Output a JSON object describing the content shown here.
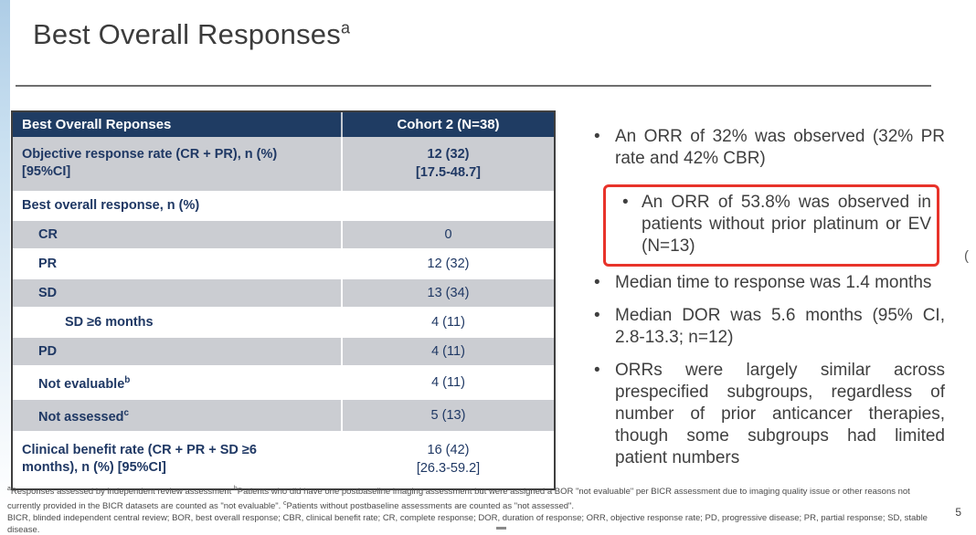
{
  "slide": {
    "title": {
      "text": "Best Overall Responses",
      "sup": "a"
    },
    "page_number": "5"
  },
  "colors": {
    "table_header_bg": "#1f3c63",
    "table_shaded_row": "#cbcdd2",
    "table_text_navy": "#1f3864",
    "highlight_border_red": "#e8332a",
    "accent_strip_blue": "#aecde6"
  },
  "table": {
    "header": [
      {
        "text": "Best Overall Reponses"
      },
      {
        "text": "Cohort 2 (N=38)"
      }
    ],
    "rows": [
      {
        "label_lines": [
          "Objective response rate (CR + PR), n (%)",
          "[95%CI]"
        ],
        "value_lines": [
          "12 (32)",
          "[17.5-48.7]"
        ],
        "shaded": true,
        "indent": 0,
        "value_bold": true
      },
      {
        "label_lines": [
          "Best overall response, n (%)"
        ],
        "value_lines": [],
        "shaded": false,
        "indent": 0
      },
      {
        "label_lines": [
          "CR"
        ],
        "value_lines": [
          "0"
        ],
        "shaded": true,
        "indent": 1
      },
      {
        "label_lines": [
          "PR"
        ],
        "value_lines": [
          "12 (32)"
        ],
        "shaded": false,
        "indent": 1
      },
      {
        "label_lines": [
          "SD"
        ],
        "value_lines": [
          "13 (34)"
        ],
        "shaded": true,
        "indent": 1
      },
      {
        "label_lines": [
          "SD ≥6 months"
        ],
        "value_lines": [
          "4 (11)"
        ],
        "shaded": false,
        "indent": 2
      },
      {
        "label_lines": [
          "PD"
        ],
        "value_lines": [
          "4 (11)"
        ],
        "shaded": true,
        "indent": 1
      },
      {
        "label_lines": [
          "Not evaluable"
        ],
        "label_sup": "b",
        "value_lines": [
          "4 (11)"
        ],
        "shaded": false,
        "indent": 1
      },
      {
        "label_lines": [
          "Not assessed"
        ],
        "label_sup": "c",
        "value_lines": [
          "5 (13)"
        ],
        "shaded": true,
        "indent": 1
      },
      {
        "label_lines": [
          "Clinical benefit rate (CR + PR + SD ≥6",
          "months), n (%) [95%CI]"
        ],
        "value_lines": [
          "16 (42)",
          "[26.3-59.2]"
        ],
        "shaded": false,
        "indent": 0
      }
    ]
  },
  "bullets": [
    {
      "level": 1,
      "text": "An ORR of 32% was observed (32% PR rate and 42% CBR)"
    },
    {
      "level": 2,
      "highlighted": true,
      "text": "An ORR of 53.8% was observed in patients without prior platinum or EV (N=13)"
    },
    {
      "level": 1,
      "text": "Median time to response was 1.4 months"
    },
    {
      "level": 1,
      "text": "Median DOR was 5.6 months (95% CI, 2.8-13.3; n=12)"
    },
    {
      "level": 1,
      "text": "ORRs were largely similar across prespecified subgroups, regardless of number of prior anticancer therapies, though some subgroups had limited patient numbers"
    }
  ],
  "footnotes": {
    "paragraphs": [
      [
        {
          "sup": "a"
        },
        {
          "t": "Responses assessed by independent review assessment "
        },
        {
          "sup": "b"
        },
        {
          "t": "Patients who did have one postbaseline imaging assessment but were assigned a BOR \"not evaluable\" per BICR assessment due to imaging quality issue or other reasons not currently provided in the BICR datasets are counted as \"not evaluable\". "
        },
        {
          "sup": "c"
        },
        {
          "t": "Patients without postbaseline assessments are counted as \"not assessed\"."
        }
      ],
      [
        {
          "t": "BICR, blinded independent central review; BOR, best overall response; CBR, clinical benefit rate; CR, complete response; DOR, duration of response; ORR, objective response rate; PD, progressive disease; PR, partial response; SD, stable disease."
        }
      ]
    ]
  },
  "artifacts": {
    "right_edge_text_fragment": "("
  }
}
